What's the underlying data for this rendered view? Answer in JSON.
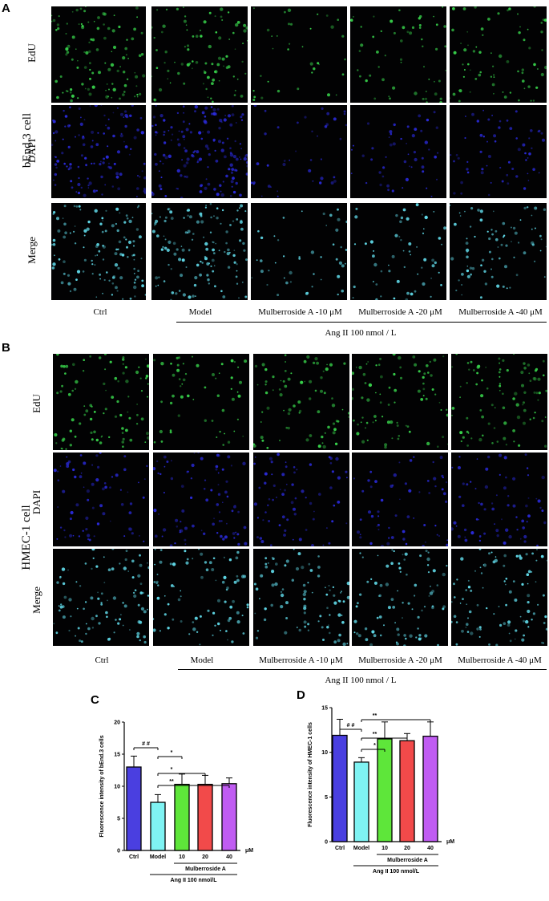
{
  "panels": {
    "A": {
      "letter": "A",
      "cell_label": "bEnd.3 cell",
      "row_labels": [
        "EdU",
        "DAPI",
        "Merge"
      ],
      "columns": [
        "Ctrl",
        "Model",
        "Mulberroside A -10 μM",
        "Mulberroside A -20 μM",
        "Mulberroside A -40 μM"
      ],
      "treatment": "Ang II 100 nmol / L"
    },
    "B": {
      "letter": "B",
      "cell_label": "HMEC-1 cell",
      "row_labels": [
        "EdU",
        "DAPI",
        "Merge"
      ],
      "columns": [
        "Ctrl",
        "Model",
        "Mulberroside A -10 μM",
        "Mulberroside A -20 μM",
        "Mulberroside A -40 μM"
      ],
      "treatment": "Ang II 100 nmol / L"
    }
  },
  "colors": {
    "ctrl": "#4a3fe0",
    "model": "#7ff3f3",
    "d10": "#5ee63a",
    "d20": "#f24a4a",
    "d40": "#c05cf2",
    "edu": "#37d04a",
    "dapi": "#2a2ad8",
    "merge": "#5fd7e6"
  },
  "chart_data": [
    {
      "letter": "C",
      "type": "bar",
      "categories": [
        "Ctrl",
        "Model",
        "10",
        "20",
        "40"
      ],
      "values": [
        13.0,
        7.5,
        10.3,
        10.3,
        10.4
      ],
      "errors": [
        1.7,
        1.2,
        1.6,
        1.4,
        0.9
      ],
      "ylabel": "Fluorescence intensity of bEnd.3 cells",
      "unit": "μM",
      "group_label": "Mulberroside A",
      "treatment_label": "Ang II 100 nmol/L",
      "ylim": [
        0,
        20
      ],
      "yticks": [
        "0",
        "5",
        "10",
        "15",
        "20"
      ],
      "significance": [
        "# #",
        "*",
        "*",
        "**"
      ]
    },
    {
      "letter": "D",
      "type": "bar",
      "categories": [
        "Ctrl",
        "Model",
        "10",
        "20",
        "40"
      ],
      "values": [
        11.9,
        8.9,
        11.5,
        11.3,
        11.8
      ],
      "errors": [
        1.8,
        0.5,
        1.9,
        0.8,
        1.6
      ],
      "ylabel": "Fluorescence intensity of HMEC-1 cells",
      "unit": "μM",
      "group_label": "Mulberroside A",
      "treatment_label": "Ang II 100 nmol/L",
      "ylim": [
        0,
        15
      ],
      "yticks": [
        "0",
        "5",
        "10",
        "15"
      ],
      "significance": [
        "# #",
        "*",
        "**",
        "**"
      ]
    }
  ]
}
